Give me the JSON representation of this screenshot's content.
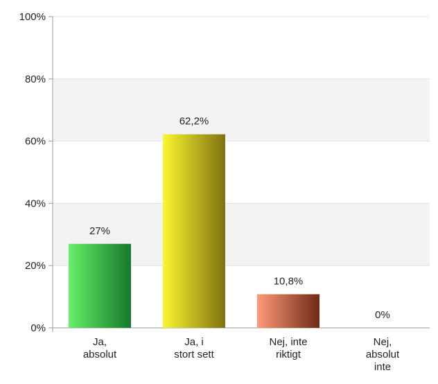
{
  "chart_data": {
    "type": "bar",
    "categories": [
      [
        "Ja,",
        "absolut"
      ],
      [
        "Ja, i",
        "stort sett"
      ],
      [
        "Nej, inte",
        "riktigt"
      ],
      [
        "Nej,",
        "absolut",
        "inte"
      ]
    ],
    "values": [
      27,
      62.2,
      10.8,
      0
    ],
    "value_labels": [
      "27%",
      "62,2%",
      "10,8%",
      "0%"
    ],
    "ylim": [
      0,
      100
    ],
    "yticks": [
      0,
      20,
      40,
      60,
      80,
      100
    ],
    "ytick_labels": [
      "0%",
      "20%",
      "40%",
      "60%",
      "80%",
      "100%"
    ],
    "grid": "horizontal, alternating shaded bands",
    "bar_colors": [
      {
        "light": "#66f06a",
        "dark": "#177a2c"
      },
      {
        "light": "#fbf630",
        "dark": "#7f7210"
      },
      {
        "light": "#ff9a78",
        "dark": "#6e2a15"
      },
      {
        "light": "#bbbbbb",
        "dark": "#666666"
      }
    ],
    "band_color": "#f3f3f3",
    "axis_color": "#999999"
  }
}
